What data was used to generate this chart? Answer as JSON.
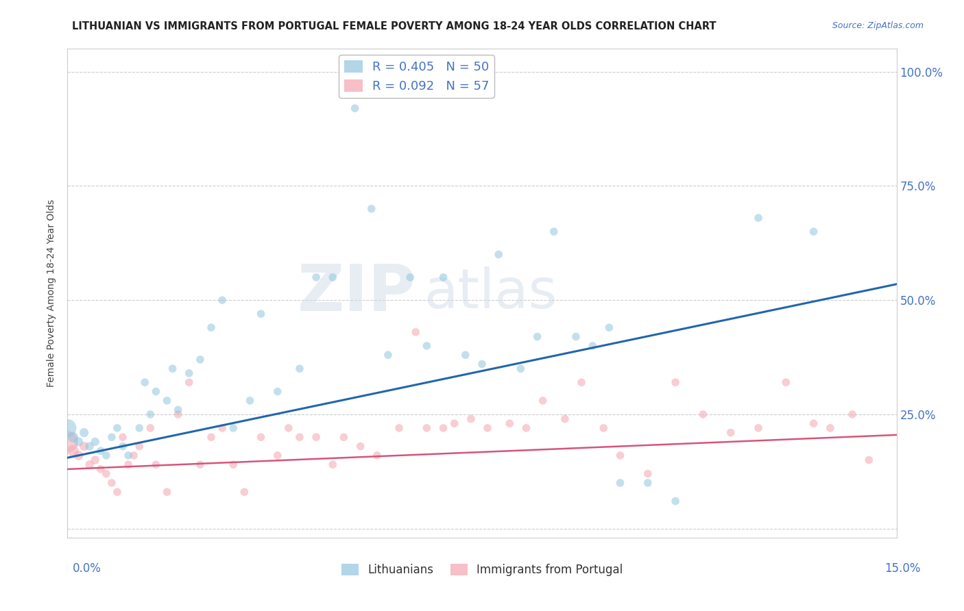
{
  "title": "LITHUANIAN VS IMMIGRANTS FROM PORTUGAL FEMALE POVERTY AMONG 18-24 YEAR OLDS CORRELATION CHART",
  "source": "Source: ZipAtlas.com",
  "ylabel": "Female Poverty Among 18-24 Year Olds",
  "xmin": 0.0,
  "xmax": 0.15,
  "ymin": -0.02,
  "ymax": 1.05,
  "yticks": [
    0.0,
    0.25,
    0.5,
    0.75,
    1.0
  ],
  "ytick_labels": [
    "",
    "25.0%",
    "50.0%",
    "75.0%",
    "100.0%"
  ],
  "series1_label": "Lithuanians",
  "series2_label": "Immigrants from Portugal",
  "series1_R": "0.405",
  "series1_N": "50",
  "series2_R": "0.092",
  "series2_N": "57",
  "series1_color": "#92c5de",
  "series2_color": "#f4a5b0",
  "line1_color": "#2166ac",
  "line2_color": "#d6547a",
  "watermark_zip": "ZIP",
  "watermark_atlas": "atlas",
  "title_fontsize": 10.5,
  "regression1_x0": 0.0,
  "regression1_y0": 0.155,
  "regression1_x1": 0.15,
  "regression1_y1": 0.535,
  "regression2_x0": 0.0,
  "regression2_y0": 0.13,
  "regression2_x1": 0.15,
  "regression2_y1": 0.205,
  "series1_x": [
    0.0,
    0.001,
    0.002,
    0.003,
    0.004,
    0.005,
    0.006,
    0.007,
    0.008,
    0.009,
    0.01,
    0.011,
    0.013,
    0.014,
    0.015,
    0.016,
    0.018,
    0.019,
    0.02,
    0.022,
    0.024,
    0.026,
    0.028,
    0.03,
    0.033,
    0.035,
    0.038,
    0.042,
    0.045,
    0.048,
    0.052,
    0.055,
    0.058,
    0.062,
    0.065,
    0.068,
    0.072,
    0.075,
    0.078,
    0.082,
    0.085,
    0.088,
    0.092,
    0.095,
    0.098,
    0.1,
    0.105,
    0.11,
    0.125,
    0.135
  ],
  "series1_y": [
    0.22,
    0.2,
    0.19,
    0.21,
    0.18,
    0.19,
    0.17,
    0.16,
    0.2,
    0.22,
    0.18,
    0.16,
    0.22,
    0.32,
    0.25,
    0.3,
    0.28,
    0.35,
    0.26,
    0.34,
    0.37,
    0.44,
    0.5,
    0.22,
    0.28,
    0.47,
    0.3,
    0.35,
    0.55,
    0.55,
    0.92,
    0.7,
    0.38,
    0.55,
    0.4,
    0.55,
    0.38,
    0.36,
    0.6,
    0.35,
    0.42,
    0.65,
    0.42,
    0.4,
    0.44,
    0.1,
    0.1,
    0.06,
    0.68,
    0.65
  ],
  "series1_size": [
    350,
    120,
    90,
    90,
    80,
    80,
    70,
    70,
    70,
    70,
    70,
    70,
    70,
    70,
    70,
    70,
    70,
    70,
    70,
    70,
    70,
    70,
    70,
    70,
    70,
    70,
    70,
    70,
    70,
    70,
    70,
    70,
    70,
    70,
    70,
    70,
    70,
    70,
    70,
    70,
    70,
    70,
    70,
    70,
    70,
    70,
    70,
    70,
    70,
    70
  ],
  "series2_x": [
    0.0,
    0.001,
    0.002,
    0.003,
    0.004,
    0.005,
    0.006,
    0.007,
    0.008,
    0.009,
    0.01,
    0.011,
    0.012,
    0.013,
    0.015,
    0.016,
    0.018,
    0.02,
    0.022,
    0.024,
    0.026,
    0.028,
    0.03,
    0.032,
    0.035,
    0.038,
    0.04,
    0.042,
    0.045,
    0.048,
    0.05,
    0.053,
    0.056,
    0.06,
    0.063,
    0.065,
    0.068,
    0.07,
    0.073,
    0.076,
    0.08,
    0.083,
    0.086,
    0.09,
    0.093,
    0.097,
    0.1,
    0.105,
    0.11,
    0.115,
    0.12,
    0.125,
    0.13,
    0.135,
    0.138,
    0.142,
    0.145
  ],
  "series2_y": [
    0.19,
    0.17,
    0.16,
    0.18,
    0.14,
    0.15,
    0.13,
    0.12,
    0.1,
    0.08,
    0.2,
    0.14,
    0.16,
    0.18,
    0.22,
    0.14,
    0.08,
    0.25,
    0.32,
    0.14,
    0.2,
    0.22,
    0.14,
    0.08,
    0.2,
    0.16,
    0.22,
    0.2,
    0.2,
    0.14,
    0.2,
    0.18,
    0.16,
    0.22,
    0.43,
    0.22,
    0.22,
    0.23,
    0.24,
    0.22,
    0.23,
    0.22,
    0.28,
    0.24,
    0.32,
    0.22,
    0.16,
    0.12,
    0.32,
    0.25,
    0.21,
    0.22,
    0.32,
    0.23,
    0.22,
    0.25,
    0.15
  ],
  "series2_size": [
    500,
    150,
    100,
    90,
    80,
    80,
    70,
    70,
    70,
    70,
    70,
    70,
    70,
    70,
    70,
    70,
    70,
    70,
    70,
    70,
    70,
    70,
    70,
    70,
    70,
    70,
    70,
    70,
    70,
    70,
    70,
    70,
    70,
    70,
    70,
    70,
    70,
    70,
    70,
    70,
    70,
    70,
    70,
    70,
    70,
    70,
    70,
    70,
    70,
    70,
    70,
    70,
    70,
    70,
    70,
    70,
    70
  ]
}
